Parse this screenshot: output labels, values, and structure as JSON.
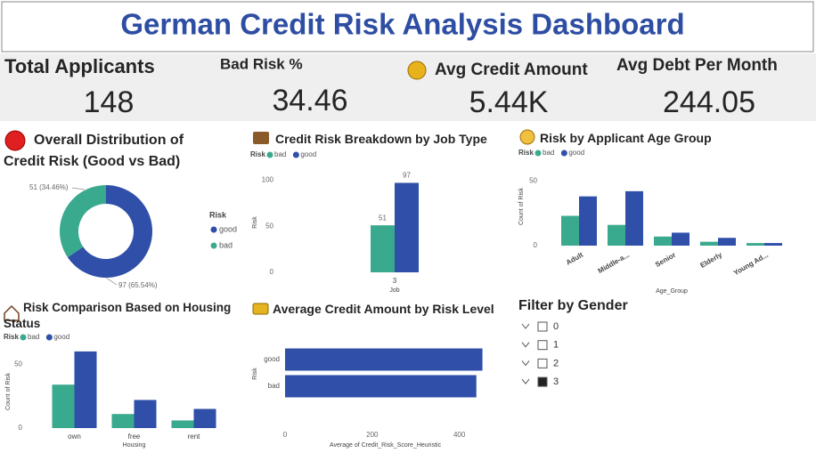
{
  "title": "German Credit Risk Analysis Dashboard",
  "kpis": [
    {
      "label": "Total Applicants",
      "value": 148
    },
    {
      "label": "Bad Risk %",
      "value": 34.46
    },
    {
      "label": "Avg Credit Amount",
      "value": "5.44K"
    },
    {
      "label": "Avg Debt Per Month",
      "value": 244.05
    }
  ],
  "chart_data": [
    {
      "type": "pie",
      "title": "Overall Distribution of Credit Risk (Good vs Bad)",
      "legend_title": "Risk",
      "categories": [
        "good",
        "bad"
      ],
      "values": [
        97,
        51
      ],
      "value_labels": [
        "97 (65.54%)",
        "51 (34.46%)"
      ],
      "colors": [
        "#2f4fa8",
        "#3aaa8e"
      ],
      "donut": true
    },
    {
      "type": "bar",
      "title": "Credit Risk Breakdown by Job Type",
      "legend_title": "Risk",
      "categories": [
        "3"
      ],
      "series": [
        {
          "name": "bad",
          "color": "#3aaa8e",
          "values": [
            51
          ]
        },
        {
          "name": "good",
          "color": "#2f4fa8",
          "values": [
            97
          ]
        }
      ],
      "xlabel": "Job",
      "ylabel": "Risk",
      "ylim": [
        0,
        110
      ],
      "yticks": [
        0,
        50,
        100
      ],
      "data_labels": true
    },
    {
      "type": "bar",
      "title": "Risk by Applicant Age Group",
      "legend_title": "Risk",
      "categories": [
        "Adult",
        "Middle-a...",
        "Senior",
        "Elderly",
        "Young Ad..."
      ],
      "series": [
        {
          "name": "bad",
          "color": "#3aaa8e",
          "values": [
            23,
            16,
            7,
            3,
            2
          ]
        },
        {
          "name": "good",
          "color": "#2f4fa8",
          "values": [
            38,
            42,
            10,
            6,
            2
          ]
        }
      ],
      "xlabel": "Age_Group",
      "ylabel": "Count of Risk",
      "ylim": [
        0,
        57
      ],
      "yticks": [
        0,
        50
      ]
    },
    {
      "type": "bar",
      "title": "Risk Comparison Based on Housing Status",
      "legend_title": "Risk",
      "categories": [
        "own",
        "free",
        "rent"
      ],
      "series": [
        {
          "name": "bad",
          "color": "#3aaa8e",
          "values": [
            34,
            11,
            6
          ]
        },
        {
          "name": "good",
          "color": "#2f4fa8",
          "values": [
            60,
            22,
            15
          ]
        }
      ],
      "xlabel": "Housing",
      "ylabel": "Count of Risk",
      "ylim": [
        0,
        62
      ],
      "yticks": [
        0,
        50
      ]
    },
    {
      "type": "barh",
      "title": "Average Credit Amount by Risk Level",
      "categories": [
        "good",
        "bad"
      ],
      "values": [
        453,
        439
      ],
      "color": "#2f4fa8",
      "xlabel": "Average of Credit_Risk_Score_Heuristic",
      "ylabel": "Risk",
      "xlim": [
        0,
        460
      ],
      "xticks": [
        0,
        200,
        400
      ]
    }
  ],
  "filter": {
    "title": "Filter by Gender",
    "options": [
      "0",
      "1",
      "2",
      "3"
    ],
    "selected": [
      false,
      false,
      false,
      true
    ]
  }
}
